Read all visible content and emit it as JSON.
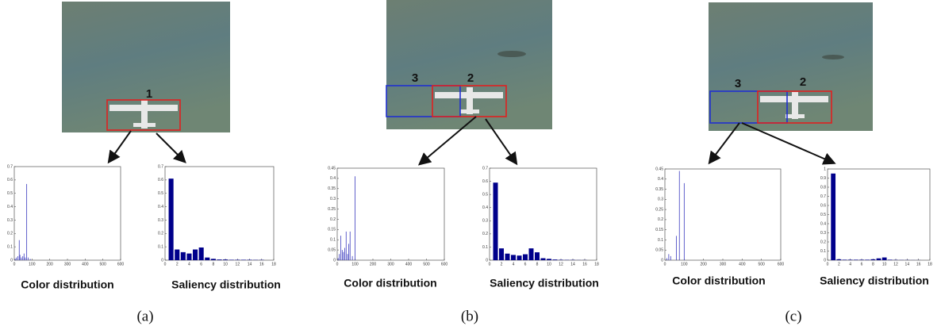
{
  "panels": [
    {
      "caption": "(a)",
      "boxes": [
        "1"
      ]
    },
    {
      "caption": "(b)",
      "boxes": [
        "3",
        "2"
      ]
    },
    {
      "caption": "(c)",
      "boxes": [
        "3",
        "2"
      ]
    }
  ],
  "chart_data": [
    {
      "type": "stem",
      "xlabel": "Color distribution",
      "color": "#3b3bbf",
      "x": [
        5,
        12,
        20,
        28,
        32,
        40,
        48,
        55,
        62,
        70,
        78,
        90
      ],
      "values": [
        0.01,
        0.02,
        0.03,
        0.15,
        0.04,
        0.02,
        0.03,
        0.05,
        0.02,
        0.57,
        0.02,
        0.01
      ],
      "xlim": [
        0,
        600
      ],
      "xticks": [
        0,
        100,
        200,
        300,
        400,
        500,
        600
      ],
      "ylim": [
        0,
        0.7
      ],
      "yticks": [
        0,
        0.1,
        0.2,
        0.3,
        0.4,
        0.5,
        0.6,
        0.7
      ]
    },
    {
      "type": "bar",
      "xlabel": "Saliency distribution",
      "color": "#00008b",
      "x": [
        1,
        2,
        3,
        4,
        5,
        6,
        7,
        8,
        9,
        10,
        11,
        12,
        13,
        14,
        15,
        16
      ],
      "values": [
        0.61,
        0.08,
        0.06,
        0.05,
        0.08,
        0.095,
        0.02,
        0.01,
        0.005,
        0.005,
        0.003,
        0.003,
        0.003,
        0.003,
        0.002,
        0.002
      ],
      "xlim": [
        0,
        18
      ],
      "xticks": [
        0,
        2,
        4,
        6,
        8,
        10,
        12,
        14,
        16,
        18
      ],
      "ylim": [
        0,
        0.7
      ],
      "yticks": [
        0,
        0.1,
        0.2,
        0.3,
        0.4,
        0.5,
        0.6,
        0.7
      ]
    },
    {
      "type": "stem",
      "xlabel": "Color distribution",
      "color": "#3b3bbf",
      "x": [
        5,
        12,
        20,
        28,
        35,
        42,
        50,
        58,
        65,
        72,
        85,
        100
      ],
      "values": [
        0.01,
        0.03,
        0.12,
        0.05,
        0.04,
        0.06,
        0.14,
        0.03,
        0.08,
        0.14,
        0.02,
        0.41
      ],
      "xlim": [
        0,
        600
      ],
      "xticks": [
        0,
        100,
        200,
        300,
        400,
        500,
        600
      ],
      "ylim": [
        0,
        0.45
      ],
      "yticks": [
        0,
        0.05,
        0.1,
        0.15,
        0.2,
        0.25,
        0.3,
        0.35,
        0.4,
        0.45
      ]
    },
    {
      "type": "bar",
      "xlabel": "Saliency distribution",
      "color": "#00008b",
      "x": [
        1,
        2,
        3,
        4,
        5,
        6,
        7,
        8,
        9,
        10,
        11,
        12,
        13,
        14,
        15,
        16
      ],
      "values": [
        0.59,
        0.09,
        0.05,
        0.04,
        0.035,
        0.045,
        0.09,
        0.06,
        0.015,
        0.01,
        0.005,
        0.003,
        0.002,
        0.002,
        0.001,
        0.001
      ],
      "xlim": [
        0,
        18
      ],
      "xticks": [
        0,
        2,
        4,
        6,
        8,
        10,
        12,
        14,
        16,
        18
      ],
      "ylim": [
        0,
        0.7
      ],
      "yticks": [
        0,
        0.1,
        0.2,
        0.3,
        0.4,
        0.5,
        0.6,
        0.7
      ]
    },
    {
      "type": "stem",
      "xlabel": "Color distribution",
      "color": "#3b3bbf",
      "x": [
        10,
        20,
        30,
        60,
        75,
        100
      ],
      "values": [
        0.01,
        0.03,
        0.02,
        0.12,
        0.44,
        0.38
      ],
      "xlim": [
        0,
        600
      ],
      "xticks": [
        0,
        100,
        200,
        300,
        400,
        500,
        600
      ],
      "ylim": [
        0,
        0.45
      ],
      "yticks": [
        0,
        0.05,
        0.1,
        0.15,
        0.2,
        0.25,
        0.3,
        0.35,
        0.4,
        0.45
      ]
    },
    {
      "type": "bar",
      "xlabel": "Saliency distribution",
      "color": "#00008b",
      "x": [
        1,
        2,
        3,
        4,
        5,
        6,
        7,
        8,
        9,
        10,
        11,
        12,
        13,
        14,
        15,
        16
      ],
      "values": [
        0.95,
        0.01,
        0.005,
        0.005,
        0.005,
        0.005,
        0.005,
        0.01,
        0.02,
        0.03,
        0.005,
        0.003,
        0.002,
        0.002,
        0.001,
        0.001
      ],
      "xlim": [
        0,
        18
      ],
      "xticks": [
        0,
        2,
        4,
        6,
        8,
        10,
        12,
        14,
        16,
        18
      ],
      "ylim": [
        0,
        1
      ],
      "yticks": [
        0,
        0.1,
        0.2,
        0.3,
        0.4,
        0.5,
        0.6,
        0.7,
        0.8,
        0.9,
        1
      ]
    }
  ]
}
